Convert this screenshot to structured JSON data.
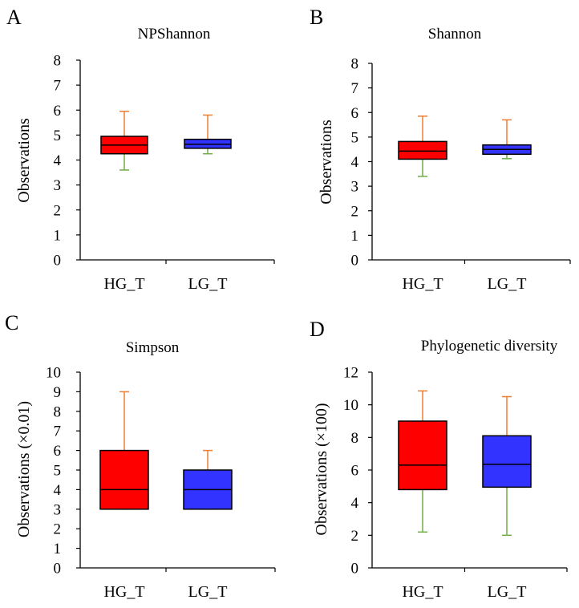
{
  "chart_data": [
    {
      "panel": "A",
      "type": "box",
      "title": "NPShannon",
      "ylabel": "Observations",
      "ylim": [
        0,
        8
      ],
      "yticks": [
        "0",
        "1",
        "2",
        "3",
        "4",
        "5",
        "6",
        "7",
        "8"
      ],
      "categories": [
        "HG_T",
        "LG_T"
      ],
      "boxes": [
        {
          "name": "HG_T",
          "min": 3.6,
          "q1": 4.25,
          "median": 4.6,
          "q3": 4.95,
          "max": 5.95,
          "color": "#ff0000"
        },
        {
          "name": "LG_T",
          "min": 4.25,
          "q1": 4.47,
          "median": 4.63,
          "q3": 4.83,
          "max": 5.8,
          "color": "#3333ff"
        }
      ]
    },
    {
      "panel": "B",
      "type": "box",
      "title": "Shannon",
      "ylabel": "Observations",
      "ylim": [
        0,
        8
      ],
      "yticks": [
        "0",
        "1",
        "2",
        "3",
        "4",
        "5",
        "6",
        "7",
        "8"
      ],
      "categories": [
        "HG_T",
        "LG_T"
      ],
      "boxes": [
        {
          "name": "HG_T",
          "min": 3.4,
          "q1": 4.1,
          "median": 4.43,
          "q3": 4.82,
          "max": 5.85,
          "color": "#ff0000"
        },
        {
          "name": "LG_T",
          "min": 4.12,
          "q1": 4.3,
          "median": 4.5,
          "q3": 4.68,
          "max": 5.7,
          "color": "#3333ff"
        }
      ]
    },
    {
      "panel": "C",
      "type": "box",
      "title": "Simpson",
      "ylabel": "Observations (×0.01)",
      "ylim": [
        0,
        10
      ],
      "yticks": [
        "0",
        "1",
        "2",
        "3",
        "4",
        "5",
        "6",
        "7",
        "8",
        "9",
        "10"
      ],
      "categories": [
        "HG_T",
        "LG_T"
      ],
      "boxes": [
        {
          "name": "HG_T",
          "min": 3,
          "q1": 3,
          "median": 4,
          "q3": 6,
          "max": 9,
          "color": "#ff0000"
        },
        {
          "name": "LG_T",
          "min": 3,
          "q1": 3,
          "median": 4,
          "q3": 5,
          "max": 6,
          "color": "#3333ff"
        }
      ]
    },
    {
      "panel": "D",
      "type": "box",
      "title": "Phylogenetic diversity",
      "ylabel": "Observations (×100)",
      "ylim": [
        0,
        12
      ],
      "yticks": [
        "0",
        "2",
        "4",
        "6",
        "8",
        "10",
        "12"
      ],
      "categories": [
        "HG_T",
        "LG_T"
      ],
      "boxes": [
        {
          "name": "HG_T",
          "min": 2.2,
          "q1": 4.8,
          "median": 6.3,
          "q3": 9.0,
          "max": 10.85,
          "color": "#ff0000"
        },
        {
          "name": "LG_T",
          "min": 2.0,
          "q1": 4.95,
          "median": 6.35,
          "q3": 8.1,
          "max": 10.5,
          "color": "#3333ff"
        }
      ]
    }
  ],
  "colors": {
    "upper_whisker": "#ed7d31",
    "lower_whisker": "#70ad47",
    "axis": "#000000"
  }
}
